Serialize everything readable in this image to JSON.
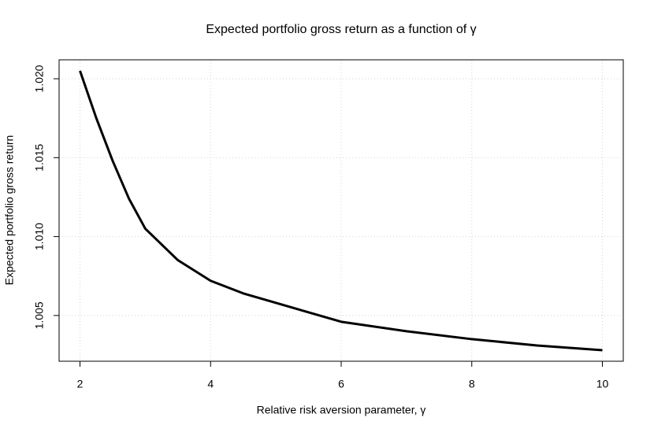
{
  "chart_data": {
    "type": "line",
    "title": "Expected portfolio gross return as a function of γ",
    "x_label": "Relative risk aversion parameter, γ",
    "y_label": "Expected portfolio gross return",
    "x": [
      2,
      2.25,
      2.5,
      2.75,
      3,
      3.5,
      4,
      4.5,
      5,
      6,
      7,
      8,
      9,
      10
    ],
    "series": [
      {
        "name": "Expected portfolio gross return",
        "color": "#000000",
        "values": [
          1.0205,
          1.0175,
          1.0148,
          1.0124,
          1.0105,
          1.0085,
          1.0072,
          1.0064,
          1.0058,
          1.0046,
          1.004,
          1.0035,
          1.0031,
          1.0028
        ]
      }
    ],
    "xlim": [
      1.68,
      10.32
    ],
    "ylim": [
      1.0021,
      1.0212
    ],
    "xticks": [
      2,
      4,
      6,
      8,
      10
    ],
    "yticks": [
      {
        "value": 1.005,
        "label": "1.005"
      },
      {
        "value": 1.01,
        "label": "1.010"
      },
      {
        "value": 1.015,
        "label": "1.015"
      },
      {
        "value": 1.02,
        "label": "1.020"
      }
    ],
    "grid": true
  }
}
